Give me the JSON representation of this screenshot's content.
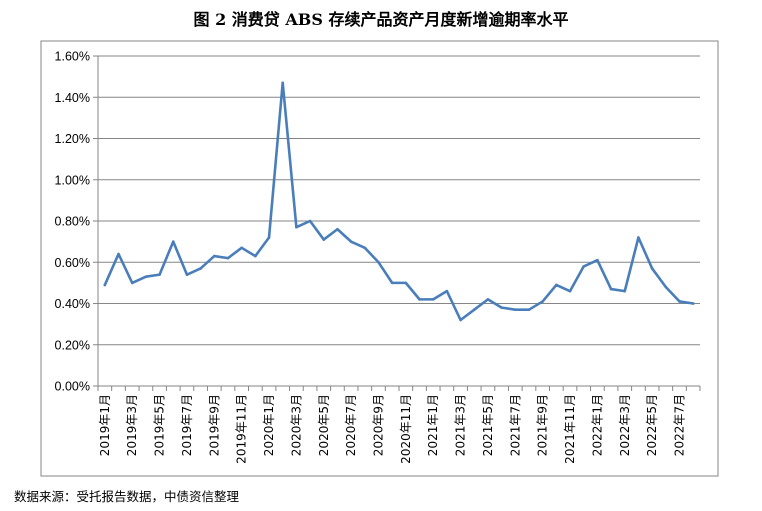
{
  "title": "图 2  消费贷 ABS 存续产品资产月度新增逾期率水平",
  "source": "数据来源：受托报告数据，中债资信整理",
  "chart_data": {
    "type": "line",
    "title": "图 2  消费贷 ABS 存续产品资产月度新增逾期率水平",
    "xlabel": "",
    "ylabel": "",
    "ylim": [
      0,
      0.016
    ],
    "yticks": [
      "0.00%",
      "0.20%",
      "0.40%",
      "0.60%",
      "0.80%",
      "1.00%",
      "1.20%",
      "1.40%",
      "1.60%"
    ],
    "x": [
      "2019年1月",
      "2019年2月",
      "2019年3月",
      "2019年4月",
      "2019年5月",
      "2019年6月",
      "2019年7月",
      "2019年8月",
      "2019年9月",
      "2019年10月",
      "2019年11月",
      "2019年12月",
      "2020年1月",
      "2020年2月",
      "2020年3月",
      "2020年4月",
      "2020年5月",
      "2020年6月",
      "2020年7月",
      "2020年8月",
      "2020年9月",
      "2020年10月",
      "2020年11月",
      "2020年12月",
      "2021年1月",
      "2021年2月",
      "2021年3月",
      "2021年4月",
      "2021年5月",
      "2021年6月",
      "2021年7月",
      "2021年8月",
      "2021年9月",
      "2021年10月",
      "2021年11月",
      "2021年12月",
      "2022年1月",
      "2022年2月",
      "2022年3月",
      "2022年4月",
      "2022年5月",
      "2022年6月",
      "2022年7月",
      "2022年8月"
    ],
    "xtick_labels": [
      "2019年1月",
      "2019年3月",
      "2019年5月",
      "2019年7月",
      "2019年9月",
      "2019年11月",
      "2020年1月",
      "2020年3月",
      "2020年5月",
      "2020年7月",
      "2020年9月",
      "2020年11月",
      "2021年1月",
      "2021年3月",
      "2021年5月",
      "2021年7月",
      "2021年9月",
      "2021年11月",
      "2022年1月",
      "2022年3月",
      "2022年5月",
      "2022年7月"
    ],
    "series": [
      {
        "color": "#4a7ebb",
        "values": [
          0.0049,
          0.0064,
          0.005,
          0.0053,
          0.0054,
          0.007,
          0.0054,
          0.0057,
          0.0063,
          0.0062,
          0.0067,
          0.0063,
          0.0072,
          0.0147,
          0.0077,
          0.008,
          0.0071,
          0.0076,
          0.007,
          0.0067,
          0.006,
          0.005,
          0.005,
          0.0042,
          0.0042,
          0.0046,
          0.0032,
          0.0037,
          0.0042,
          0.0038,
          0.0037,
          0.0037,
          0.0041,
          0.0049,
          0.0046,
          0.0058,
          0.0061,
          0.0047,
          0.0046,
          0.0072,
          0.0057,
          0.0048,
          0.0041,
          0.004
        ]
      }
    ],
    "grid": true,
    "legend": "none"
  }
}
